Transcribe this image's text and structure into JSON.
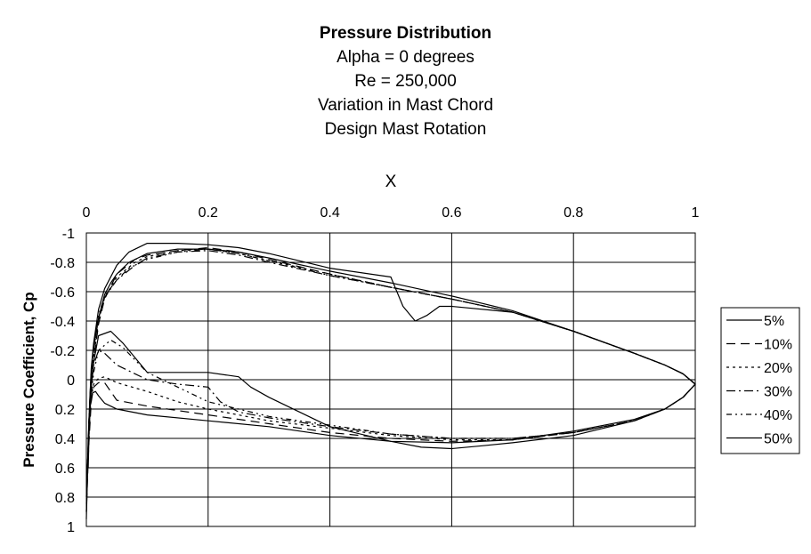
{
  "chart_data": {
    "type": "line",
    "title": "Pressure Distribution",
    "subtitle_lines": [
      "Alpha = 0 degrees",
      "Re = 250,000",
      "Variation in Mast Chord",
      "Design Mast Rotation"
    ],
    "xlabel": "X",
    "ylabel": "Pressure Coefficient, Cp",
    "xlim": [
      0,
      1
    ],
    "ylim": [
      -1,
      1
    ],
    "y_reversed": true,
    "x_ticks": [
      "0",
      "0.2",
      "0.4",
      "0.6",
      "0.8",
      "1"
    ],
    "y_ticks": [
      "-1",
      "-0.8",
      "-0.6",
      "-0.4",
      "-0.2",
      "0",
      "0.2",
      "0.4",
      "0.6",
      "0.8",
      "1"
    ],
    "x_tick_values": [
      0,
      0.2,
      0.4,
      0.6,
      0.8,
      1
    ],
    "y_tick_values": [
      -1,
      -0.8,
      -0.6,
      -0.4,
      -0.2,
      0,
      0.2,
      0.4,
      0.6,
      0.8,
      1
    ],
    "grid": true,
    "legend_position": "right",
    "series": [
      {
        "name": "5%",
        "dash": "solid",
        "x": [
          0.003,
          0.006,
          0.01,
          0.015,
          0.02,
          0.03,
          0.04,
          0.05,
          0.07,
          0.1,
          0.15,
          0.2,
          0.25,
          0.3,
          0.4,
          0.5,
          0.6,
          0.7,
          0.8,
          0.9,
          0.95,
          0.98,
          1.0,
          0.98,
          0.95,
          0.9,
          0.8,
          0.7,
          0.6,
          0.5,
          0.4,
          0.3,
          0.2,
          0.1,
          0.05,
          0.03,
          0.02,
          0.015,
          0.01,
          0.006,
          0.003,
          0.0
        ],
        "y": [
          0.6,
          0.1,
          -0.15,
          -0.3,
          -0.42,
          -0.58,
          -0.66,
          -0.72,
          -0.8,
          -0.86,
          -0.89,
          -0.89,
          -0.87,
          -0.83,
          -0.74,
          -0.66,
          -0.57,
          -0.47,
          -0.33,
          -0.18,
          -0.1,
          -0.04,
          0.03,
          0.12,
          0.2,
          0.27,
          0.35,
          0.41,
          0.43,
          0.42,
          0.38,
          0.32,
          0.28,
          0.24,
          0.2,
          0.16,
          0.11,
          0.08,
          0.09,
          0.18,
          0.4,
          0.9
        ]
      },
      {
        "name": "10%",
        "dash": "10,6",
        "x": [
          0.004,
          0.008,
          0.012,
          0.02,
          0.03,
          0.05,
          0.08,
          0.1,
          0.12,
          0.15,
          0.2,
          0.25,
          0.3,
          0.4,
          0.5,
          0.6,
          0.7,
          0.8,
          0.9,
          0.95,
          0.98,
          1.0,
          0.98,
          0.95,
          0.9,
          0.8,
          0.7,
          0.6,
          0.5,
          0.4,
          0.3,
          0.2,
          0.1,
          0.05,
          0.03,
          0.02,
          0.012,
          0.008,
          0.004,
          0.0
        ],
        "y": [
          0.4,
          0.05,
          -0.12,
          -0.38,
          -0.55,
          -0.72,
          -0.82,
          -0.85,
          -0.86,
          -0.88,
          -0.9,
          -0.87,
          -0.82,
          -0.72,
          -0.63,
          -0.55,
          -0.46,
          -0.33,
          -0.18,
          -0.1,
          -0.04,
          0.03,
          0.12,
          0.2,
          0.28,
          0.36,
          0.41,
          0.42,
          0.4,
          0.36,
          0.3,
          0.24,
          0.18,
          0.14,
          0.02,
          0.02,
          0.05,
          0.15,
          0.45,
          0.9
        ]
      },
      {
        "name": "20%",
        "dash": "3,4",
        "x": [
          0.004,
          0.008,
          0.012,
          0.02,
          0.03,
          0.05,
          0.08,
          0.1,
          0.15,
          0.2,
          0.25,
          0.3,
          0.4,
          0.5,
          0.6,
          0.7,
          0.8,
          0.9,
          0.95,
          0.98,
          1.0,
          0.98,
          0.95,
          0.9,
          0.8,
          0.7,
          0.6,
          0.5,
          0.4,
          0.3,
          0.2,
          0.15,
          0.1,
          0.05,
          0.03,
          0.02,
          0.012,
          0.008,
          0.004,
          0.0
        ],
        "y": [
          0.35,
          0.0,
          -0.15,
          -0.4,
          -0.56,
          -0.7,
          -0.8,
          -0.84,
          -0.88,
          -0.89,
          -0.86,
          -0.81,
          -0.72,
          -0.63,
          -0.55,
          -0.46,
          -0.33,
          -0.18,
          -0.1,
          -0.04,
          0.03,
          0.12,
          0.2,
          0.28,
          0.36,
          0.41,
          0.41,
          0.38,
          0.33,
          0.28,
          0.2,
          0.15,
          0.08,
          0.02,
          -0.02,
          -0.01,
          0.03,
          0.12,
          0.4,
          0.85
        ]
      },
      {
        "name": "30%",
        "dash": "10,4,2,4",
        "x": [
          0.004,
          0.008,
          0.012,
          0.02,
          0.03,
          0.05,
          0.08,
          0.1,
          0.15,
          0.2,
          0.25,
          0.3,
          0.4,
          0.5,
          0.6,
          0.7,
          0.8,
          0.9,
          0.95,
          0.98,
          1.0,
          0.98,
          0.95,
          0.9,
          0.8,
          0.7,
          0.6,
          0.5,
          0.4,
          0.3,
          0.25,
          0.22,
          0.2,
          0.15,
          0.1,
          0.05,
          0.03,
          0.02,
          0.012,
          0.008,
          0.004,
          0.0
        ],
        "y": [
          0.3,
          -0.05,
          -0.2,
          -0.42,
          -0.56,
          -0.68,
          -0.78,
          -0.83,
          -0.87,
          -0.88,
          -0.85,
          -0.8,
          -0.71,
          -0.63,
          -0.55,
          -0.46,
          -0.33,
          -0.18,
          -0.1,
          -0.04,
          0.03,
          0.12,
          0.2,
          0.28,
          0.36,
          0.4,
          0.4,
          0.37,
          0.32,
          0.26,
          0.22,
          0.15,
          0.05,
          0.03,
          0.0,
          -0.1,
          -0.18,
          -0.2,
          -0.1,
          0.05,
          0.35,
          0.8
        ]
      },
      {
        "name": "40%",
        "dash": "6,4,2,4,2,4",
        "x": [
          0.004,
          0.008,
          0.012,
          0.02,
          0.03,
          0.05,
          0.07,
          0.1,
          0.15,
          0.2,
          0.25,
          0.3,
          0.4,
          0.5,
          0.6,
          0.7,
          0.8,
          0.9,
          0.95,
          0.98,
          1.0,
          0.98,
          0.95,
          0.9,
          0.8,
          0.7,
          0.6,
          0.5,
          0.4,
          0.3,
          0.25,
          0.2,
          0.15,
          0.1,
          0.06,
          0.04,
          0.02,
          0.012,
          0.008,
          0.004,
          0.0
        ],
        "y": [
          0.3,
          -0.05,
          -0.22,
          -0.44,
          -0.57,
          -0.68,
          -0.76,
          -0.82,
          -0.87,
          -0.89,
          -0.86,
          -0.81,
          -0.71,
          -0.63,
          -0.55,
          -0.46,
          -0.33,
          -0.18,
          -0.1,
          -0.04,
          0.03,
          0.12,
          0.2,
          0.28,
          0.36,
          0.4,
          0.4,
          0.37,
          0.31,
          0.25,
          0.2,
          0.15,
          0.05,
          -0.05,
          -0.22,
          -0.27,
          -0.2,
          -0.05,
          0.1,
          0.35,
          0.8
        ]
      },
      {
        "name": "50%",
        "dash": "solid",
        "x": [
          0.004,
          0.008,
          0.012,
          0.02,
          0.03,
          0.05,
          0.07,
          0.1,
          0.15,
          0.2,
          0.25,
          0.3,
          0.4,
          0.5,
          0.52,
          0.54,
          0.56,
          0.58,
          0.6,
          0.7,
          0.8,
          0.9,
          0.95,
          0.98,
          1.0,
          0.98,
          0.95,
          0.9,
          0.8,
          0.7,
          0.65,
          0.6,
          0.55,
          0.5,
          0.4,
          0.35,
          0.3,
          0.27,
          0.25,
          0.2,
          0.15,
          0.1,
          0.06,
          0.04,
          0.02,
          0.012,
          0.008,
          0.004,
          0.0
        ],
        "y": [
          0.3,
          -0.08,
          -0.25,
          -0.48,
          -0.62,
          -0.78,
          -0.87,
          -0.93,
          -0.93,
          -0.92,
          -0.9,
          -0.86,
          -0.76,
          -0.7,
          -0.5,
          -0.4,
          -0.44,
          -0.5,
          -0.5,
          -0.46,
          -0.33,
          -0.18,
          -0.1,
          -0.04,
          0.03,
          0.12,
          0.2,
          0.28,
          0.38,
          0.43,
          0.45,
          0.47,
          0.46,
          0.42,
          0.32,
          0.22,
          0.12,
          0.05,
          -0.02,
          -0.05,
          -0.05,
          -0.05,
          -0.25,
          -0.33,
          -0.3,
          -0.12,
          0.05,
          0.3,
          0.95
        ]
      }
    ]
  }
}
